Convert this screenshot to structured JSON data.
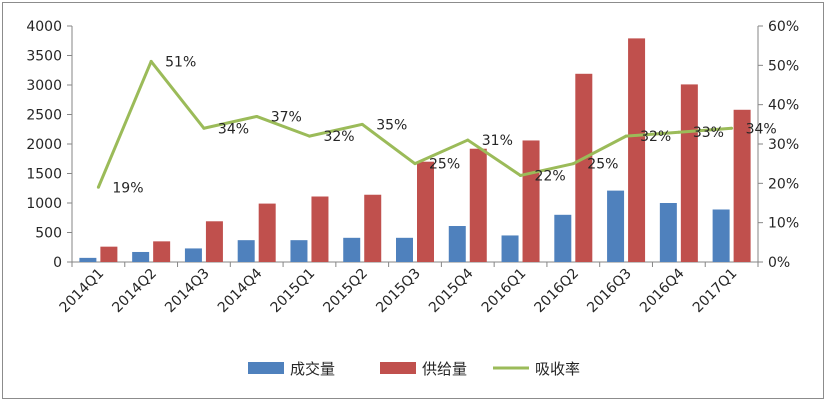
{
  "chart_data": {
    "type": "bar",
    "categories": [
      "2014Q1",
      "2014Q2",
      "2014Q3",
      "2014Q4",
      "2015Q1",
      "2015Q2",
      "2015Q3",
      "2015Q4",
      "2016Q1",
      "2016Q2",
      "2016Q3",
      "2016Q4",
      "2017Q1"
    ],
    "series": [
      {
        "name": "成交量",
        "kind": "bar",
        "axis": "left",
        "color": "#4f81bd",
        "values": [
          70,
          170,
          230,
          370,
          370,
          410,
          410,
          610,
          450,
          800,
          1210,
          1000,
          890
        ]
      },
      {
        "name": "供给量",
        "kind": "bar",
        "axis": "left",
        "color": "#c0504d",
        "values": [
          260,
          350,
          690,
          990,
          1110,
          1140,
          1700,
          1920,
          2060,
          3190,
          3790,
          3010,
          2580
        ]
      },
      {
        "name": "吸收率",
        "kind": "line",
        "axis": "right",
        "color": "#9bbb59",
        "values": [
          19,
          51,
          34,
          37,
          32,
          35,
          25,
          31,
          22,
          25,
          32,
          33,
          34
        ],
        "labels": [
          "19%",
          "51%",
          "34%",
          "37%",
          "32%",
          "35%",
          "25%",
          "31%",
          "22%",
          "25%",
          "32%",
          "33%",
          "34%"
        ]
      }
    ],
    "ylim": [
      0,
      4000
    ],
    "yticks": [
      "0",
      "500",
      "1000",
      "1500",
      "2000",
      "2500",
      "3000",
      "3500",
      "4000"
    ],
    "y2lim": [
      0,
      60
    ],
    "y2ticks": [
      "0%",
      "10%",
      "20%",
      "30%",
      "40%",
      "50%",
      "60%"
    ],
    "legend_position": "bottom",
    "grid": false
  }
}
